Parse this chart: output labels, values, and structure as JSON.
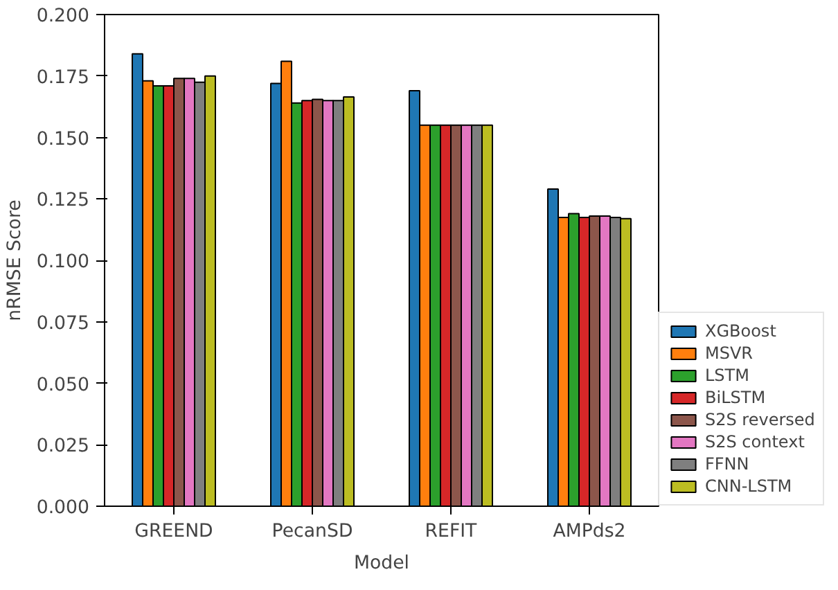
{
  "chart_data": {
    "type": "bar",
    "xlabel": "Model",
    "ylabel": "nRMSE Score",
    "categories": [
      "GREEND",
      "PecanSD",
      "REFIT",
      "AMPds2"
    ],
    "series": [
      {
        "name": "XGBoost",
        "color": "#1f77b4",
        "values": [
          0.184,
          0.172,
          0.169,
          0.129
        ]
      },
      {
        "name": "MSVR",
        "color": "#ff7f0e",
        "values": [
          0.173,
          0.181,
          0.155,
          0.1175
        ]
      },
      {
        "name": "LSTM",
        "color": "#2ca02c",
        "values": [
          0.171,
          0.164,
          0.155,
          0.119
        ]
      },
      {
        "name": "BiLSTM",
        "color": "#d62728",
        "values": [
          0.171,
          0.165,
          0.155,
          0.1175
        ]
      },
      {
        "name": "S2S reversed",
        "color": "#8c564b",
        "values": [
          0.174,
          0.1655,
          0.155,
          0.118
        ]
      },
      {
        "name": "S2S context",
        "color": "#e377c2",
        "values": [
          0.174,
          0.165,
          0.155,
          0.118
        ]
      },
      {
        "name": "FFNN",
        "color": "#7f7f7f",
        "values": [
          0.1725,
          0.165,
          0.155,
          0.1175
        ]
      },
      {
        "name": "CNN-LSTM",
        "color": "#bcbd22",
        "values": [
          0.175,
          0.1665,
          0.155,
          0.117
        ]
      }
    ],
    "ylim": [
      0,
      0.2
    ],
    "yticks": [
      {
        "value": 0,
        "label": "0.000"
      },
      {
        "value": 0.025,
        "label": "0.025"
      },
      {
        "value": 0.05,
        "label": "0.050"
      },
      {
        "value": 0.075,
        "label": "0.075"
      },
      {
        "value": 0.1,
        "label": "0.100"
      },
      {
        "value": 0.125,
        "label": "0.125"
      },
      {
        "value": 0.15,
        "label": "0.150"
      },
      {
        "value": 0.175,
        "label": "0.175"
      },
      {
        "value": 0.2,
        "label": "0.200"
      }
    ],
    "legend": "right"
  }
}
